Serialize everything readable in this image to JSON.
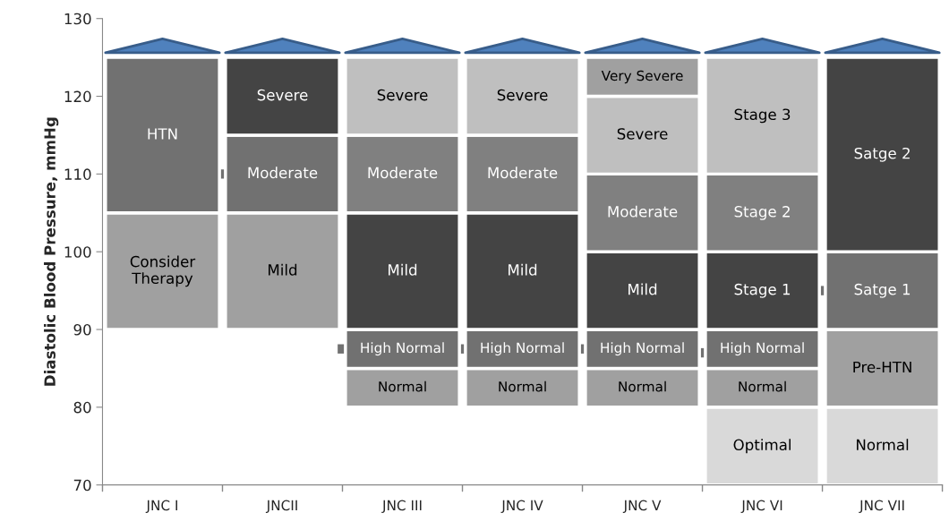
{
  "chart_data": {
    "type": "bar",
    "ylabel": "Diastolic Blood Pressure, mmHg",
    "categories": [
      "JNC I",
      "JNCII",
      "JNC III",
      "JNC IV",
      "JNC V",
      "JNC VI",
      "JNC VII"
    ],
    "series": [
      {
        "base": [
          90,
          90,
          80,
          80,
          80,
          70,
          70
        ],
        "values": [
          15,
          15,
          5,
          5,
          5,
          10,
          10
        ],
        "colors": [
          "#a0a0a0",
          "#a0a0a0",
          "#a0a0a0",
          "#a0a0a0",
          "#a0a0a0",
          "#d9d9d9",
          "#d9d9d9"
        ],
        "value_labels": [
          "Consider Therapy",
          "Mild",
          "Normal",
          "Normal",
          "Normal",
          "Optimal",
          "Normal"
        ]
      },
      {
        "base": [
          105,
          105,
          85,
          85,
          85,
          80,
          80
        ],
        "values": [
          20,
          10,
          5,
          5,
          5,
          5,
          10
        ],
        "colors": [
          "#717171",
          "#717171",
          "#717171",
          "#717171",
          "#717171",
          "#a0a0a0",
          "#a0a0a0"
        ],
        "value_labels": [
          "HTN",
          "Moderate",
          "High Normal",
          "High Normal",
          "High Normal",
          "Normal",
          "Pre-HTN"
        ]
      },
      {
        "base": [
          null,
          115,
          90,
          90,
          90,
          85,
          90
        ],
        "values": [
          null,
          10,
          15,
          15,
          10,
          5,
          10
        ],
        "colors": [
          null,
          "#444444",
          "#444444",
          "#444444",
          "#444444",
          "#717171",
          "#717171"
        ],
        "value_labels": [
          null,
          "Severe",
          "Mild",
          "Mild",
          "Mild",
          "High Normal",
          "Satge 1"
        ]
      },
      {
        "base": [
          null,
          null,
          105,
          105,
          100,
          90,
          100
        ],
        "values": [
          null,
          null,
          10,
          10,
          10,
          10,
          25
        ],
        "colors": [
          null,
          null,
          "#808080",
          "#808080",
          "#808080",
          "#444444",
          "#444444"
        ],
        "value_labels": [
          null,
          null,
          "Moderate",
          "Moderate",
          "Moderate",
          "Stage 1",
          "Satge 2"
        ]
      },
      {
        "base": [
          null,
          null,
          115,
          115,
          110,
          100,
          null
        ],
        "values": [
          null,
          null,
          10,
          10,
          10,
          10,
          null
        ],
        "colors": [
          null,
          null,
          "#bfbfbf",
          "#bfbfbf",
          "#bfbfbf",
          "#808080",
          null
        ],
        "value_labels": [
          null,
          null,
          "Severe",
          "Severe",
          "Severe",
          "Stage 2",
          null
        ]
      },
      {
        "base": [
          null,
          null,
          null,
          null,
          120,
          110,
          null
        ],
        "values": [
          null,
          null,
          null,
          null,
          5,
          15,
          null
        ],
        "colors": [
          null,
          null,
          null,
          null,
          "#a0a0a0",
          "#bfbfbf",
          null
        ],
        "value_labels": [
          null,
          null,
          null,
          null,
          "Very Severe",
          "Stage 3",
          null
        ]
      }
    ],
    "ylim": [
      70,
      130
    ],
    "yticks": [
      70,
      80,
      90,
      100,
      110,
      120,
      130
    ],
    "grid": false,
    "legend": false
  }
}
